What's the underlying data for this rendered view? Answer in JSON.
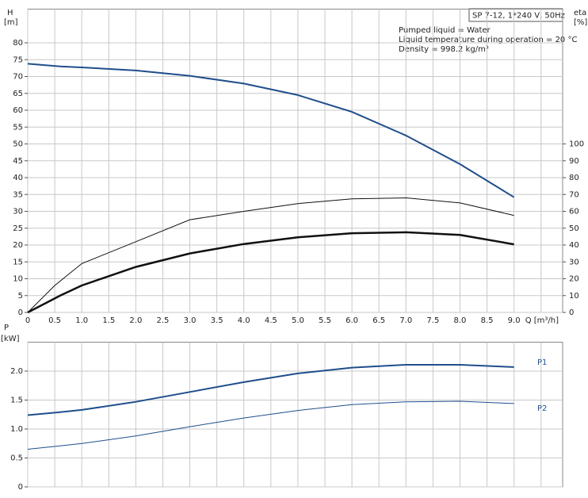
{
  "chart_data": [
    {
      "type": "line",
      "model": "SP 7-12, 1*240 V, 50Hz",
      "annotations": [
        "Pumped liquid = Water",
        "Liquid temperature during operation = 20 °C",
        "Density = 998.2 kg/m³"
      ],
      "y_label": [
        "H",
        "[m]"
      ],
      "y2_label": [
        "eta",
        "[%]"
      ],
      "xlim": [
        0,
        9.9
      ],
      "ylim": [
        0,
        90
      ],
      "y2lim": [
        0,
        180
      ],
      "xticks": [
        0,
        0.5,
        {
          "value": 1,
          "label": "1.0"
        },
        1.5,
        {
          "value": 2,
          "label": "2.0"
        },
        2.5,
        {
          "value": 3,
          "label": "3.0"
        },
        3.5,
        {
          "value": 4,
          "label": "4.0"
        },
        4.5,
        {
          "value": 5,
          "label": "5.0"
        },
        5.5,
        {
          "value": 6,
          "label": "6.0"
        },
        6.5,
        {
          "value": 7,
          "label": "7.0"
        },
        7.5,
        {
          "value": 8,
          "label": "8.0"
        },
        8.5,
        {
          "value": 9,
          "label": "9.0"
        },
        {
          "value": 9.5,
          "label": "Q [m³/h]"
        }
      ],
      "yticks": [
        0,
        5,
        10,
        15,
        20,
        25,
        30,
        35,
        40,
        45,
        50,
        55,
        60,
        65,
        70,
        75,
        80
      ],
      "y2ticks": [
        0,
        10,
        20,
        30,
        40,
        50,
        60,
        70,
        80,
        90,
        100
      ],
      "grid": true,
      "series": [
        {
          "color": "#1f4e8c",
          "linewidth": 2,
          "x": [
            0,
            0.6,
            1,
            2,
            3,
            4,
            5,
            6,
            7,
            8,
            9
          ],
          "values": [
            73.8,
            73,
            72.7,
            71.8,
            70.2,
            67.9,
            64.5,
            59.5,
            52.5,
            44,
            34.2
          ]
        },
        {
          "color": "#111111",
          "linewidth": 1,
          "axis": "y2",
          "x": [
            0,
            0.5,
            1,
            2,
            3,
            4,
            5,
            6,
            7,
            8,
            9
          ],
          "values": [
            0,
            16,
            29,
            42,
            55,
            60,
            64.6,
            67.4,
            68,
            65,
            57.6
          ]
        },
        {
          "color": "#111111",
          "linewidth": 2.5,
          "axis": "y2",
          "x": [
            0,
            0.6,
            1,
            2,
            3,
            4,
            5,
            6,
            7,
            8,
            9
          ],
          "values": [
            0,
            10,
            16,
            27,
            35,
            40.6,
            44.6,
            47,
            47.6,
            46,
            40.4
          ]
        }
      ]
    },
    {
      "type": "line",
      "y_label": [
        "P",
        "[kW]"
      ],
      "xlim": [
        0,
        9.9
      ],
      "ylim": [
        0,
        2.5
      ],
      "xticks": [
        0,
        0.5,
        1,
        1.5,
        2,
        2.5,
        3,
        3.5,
        4,
        4.5,
        5,
        5.5,
        6,
        6.5,
        7,
        7.5,
        8,
        8.5,
        9,
        9.5
      ],
      "xtick_labels": false,
      "yticks": [
        0,
        0.5,
        {
          "value": 1,
          "label": "1.0"
        },
        1.5,
        {
          "value": 2,
          "label": "2.0"
        }
      ],
      "grid": true,
      "series": [
        {
          "name": "P1",
          "color": "#1f4e8c",
          "linewidth": 2,
          "x": [
            0,
            0.6,
            1,
            2,
            3,
            4,
            5,
            6,
            7,
            8,
            9
          ],
          "values": [
            1.24,
            1.29,
            1.33,
            1.47,
            1.64,
            1.81,
            1.96,
            2.06,
            2.11,
            2.11,
            2.07
          ]
        },
        {
          "name": "P2",
          "color": "#1f4e8c",
          "linewidth": 1,
          "x": [
            0,
            0.6,
            1,
            2,
            3,
            4,
            5,
            6,
            7,
            8,
            9
          ],
          "values": [
            0.65,
            0.71,
            0.75,
            0.88,
            1.04,
            1.19,
            1.32,
            1.42,
            1.47,
            1.48,
            1.44
          ]
        }
      ]
    }
  ]
}
